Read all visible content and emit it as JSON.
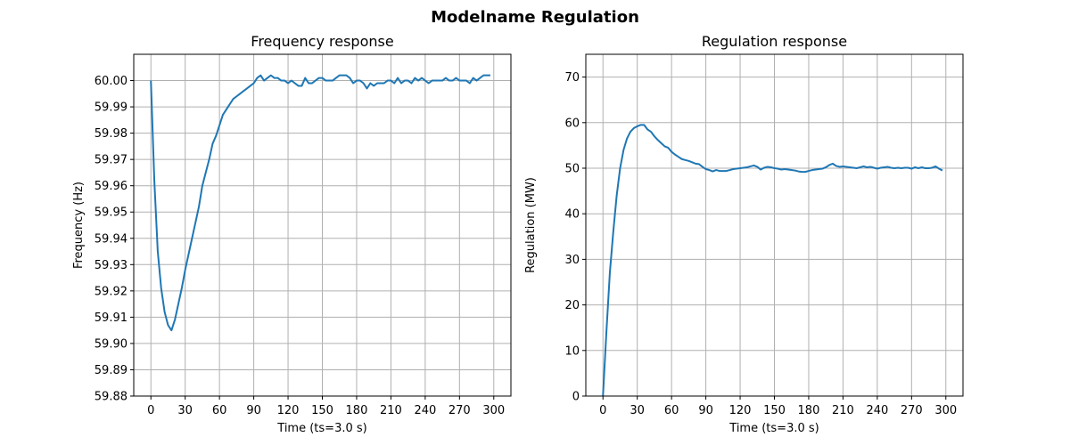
{
  "figure_title": "Modelname Regulation",
  "chart_data": [
    {
      "type": "line",
      "title": "Frequency response",
      "xlabel": "Time (ts=3.0 s)",
      "ylabel": "Frequency (Hz)",
      "xlim": [
        -15,
        315
      ],
      "ylim": [
        59.88,
        60.01
      ],
      "xticks": [
        0,
        30,
        60,
        90,
        120,
        150,
        180,
        210,
        240,
        270,
        300
      ],
      "yticks": [
        59.88,
        59.89,
        59.9,
        59.91,
        59.92,
        59.93,
        59.94,
        59.95,
        59.96,
        59.97,
        59.98,
        59.99,
        60.0
      ],
      "ytick_labels": [
        "59.88",
        "59.89",
        "59.90",
        "59.91",
        "59.92",
        "59.93",
        "59.94",
        "59.95",
        "59.96",
        "59.97",
        "59.98",
        "59.99",
        "60.00"
      ],
      "grid": true,
      "color": "#1f77b4",
      "series": [
        {
          "x": [
            0,
            3,
            6,
            9,
            12,
            15,
            18,
            21,
            24,
            27,
            30,
            33,
            36,
            39,
            42,
            45,
            48,
            51,
            54,
            57,
            60,
            63,
            66,
            69,
            72,
            75,
            78,
            81,
            84,
            87,
            90,
            93,
            96,
            99,
            102,
            105,
            108,
            111,
            114,
            117,
            120,
            123,
            126,
            129,
            132,
            135,
            138,
            141,
            144,
            147,
            150,
            153,
            156,
            159,
            162,
            165,
            168,
            171,
            174,
            177,
            180,
            183,
            186,
            189,
            192,
            195,
            198,
            201,
            204,
            207,
            210,
            213,
            216,
            219,
            222,
            225,
            228,
            231,
            234,
            237,
            240,
            243,
            246,
            249,
            252,
            255,
            258,
            261,
            264,
            267,
            270,
            273,
            276,
            279,
            282,
            285,
            288,
            291,
            294,
            297
          ],
          "y": [
            60.0,
            59.962,
            59.935,
            59.921,
            59.912,
            59.907,
            59.905,
            59.909,
            59.915,
            59.921,
            59.928,
            59.934,
            59.94,
            59.946,
            59.952,
            59.96,
            59.965,
            59.97,
            59.976,
            59.979,
            59.983,
            59.987,
            59.989,
            59.991,
            59.993,
            59.994,
            59.995,
            59.996,
            59.997,
            59.998,
            59.999,
            60.001,
            60.002,
            60.0,
            60.001,
            60.002,
            60.001,
            60.001,
            60.0,
            60.0,
            59.999,
            60.0,
            59.999,
            59.998,
            59.998,
            60.001,
            59.999,
            59.999,
            60.0,
            60.001,
            60.001,
            60.0,
            60.0,
            60.0,
            60.001,
            60.002,
            60.002,
            60.002,
            60.001,
            59.999,
            60.0,
            60.0,
            59.999,
            59.997,
            59.999,
            59.998,
            59.999,
            59.999,
            59.999,
            60.0,
            60.0,
            59.999,
            60.001,
            59.999,
            60.0,
            60.0,
            59.999,
            60.001,
            60.0,
            60.001,
            60.0,
            59.999,
            60.0,
            60.0,
            60.0,
            60.0,
            60.001,
            60.0,
            60.0,
            60.001,
            60.0,
            60.0,
            60.0,
            59.999,
            60.001,
            60.0,
            60.001,
            60.002,
            60.002,
            60.002
          ]
        }
      ]
    },
    {
      "type": "line",
      "title": "Regulation response",
      "xlabel": "Time (ts=3.0 s)",
      "ylabel": "Regulation (MW)",
      "xlim": [
        -15,
        315
      ],
      "ylim": [
        0,
        75
      ],
      "xticks": [
        0,
        30,
        60,
        90,
        120,
        150,
        180,
        210,
        240,
        270,
        300
      ],
      "yticks": [
        0,
        10,
        20,
        30,
        40,
        50,
        60,
        70
      ],
      "ytick_labels": [
        "0",
        "10",
        "20",
        "30",
        "40",
        "50",
        "60",
        "70"
      ],
      "grid": true,
      "color": "#1f77b4",
      "series": [
        {
          "x": [
            0,
            3,
            6,
            9,
            12,
            15,
            18,
            21,
            24,
            27,
            30,
            33,
            36,
            39,
            42,
            45,
            48,
            51,
            54,
            57,
            60,
            63,
            66,
            69,
            72,
            75,
            78,
            81,
            84,
            87,
            90,
            93,
            96,
            99,
            102,
            105,
            108,
            111,
            114,
            117,
            120,
            123,
            126,
            129,
            132,
            135,
            138,
            141,
            144,
            147,
            150,
            153,
            156,
            159,
            162,
            165,
            168,
            171,
            174,
            177,
            180,
            183,
            186,
            189,
            192,
            195,
            198,
            201,
            204,
            207,
            210,
            213,
            216,
            219,
            222,
            225,
            228,
            231,
            234,
            237,
            240,
            243,
            246,
            249,
            252,
            255,
            258,
            261,
            264,
            267,
            270,
            273,
            276,
            279,
            282,
            285,
            288,
            291,
            294,
            297
          ],
          "y": [
            0,
            14,
            27,
            36,
            44,
            50,
            54,
            56.5,
            58,
            58.8,
            59.2,
            59.5,
            59.5,
            58.5,
            58,
            57,
            56.2,
            55.5,
            54.8,
            54.5,
            53.6,
            53,
            52.5,
            52,
            51.8,
            51.6,
            51.3,
            51,
            50.9,
            50.3,
            49.8,
            49.6,
            49.3,
            49.6,
            49.4,
            49.4,
            49.4,
            49.6,
            49.8,
            49.9,
            50,
            50.1,
            50.2,
            50.4,
            50.6,
            50.3,
            49.7,
            50.1,
            50.3,
            50.2,
            50,
            49.9,
            49.7,
            49.8,
            49.7,
            49.6,
            49.5,
            49.3,
            49.2,
            49.2,
            49.4,
            49.6,
            49.7,
            49.8,
            49.9,
            50.2,
            50.7,
            51,
            50.5,
            50.3,
            50.4,
            50.3,
            50.2,
            50.1,
            50,
            50.2,
            50.4,
            50.2,
            50.3,
            50.1,
            49.9,
            50.1,
            50.2,
            50.3,
            50.1,
            50,
            50.1,
            50,
            50.1,
            50.1,
            49.9,
            50.2,
            50,
            50.2,
            50,
            50,
            50.1,
            50.4,
            49.9,
            49.5
          ]
        }
      ]
    }
  ]
}
